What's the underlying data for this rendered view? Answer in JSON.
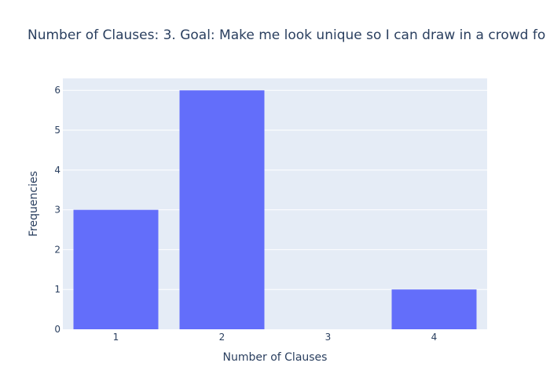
{
  "chart_data": {
    "type": "bar",
    "title": "Number of Clauses: 3. Goal: Make me look unique so I can draw in a crowd fo",
    "xlabel": "Number of Clauses",
    "ylabel": "Frequencies",
    "categories": [
      "1",
      "2",
      "3",
      "4"
    ],
    "values": [
      3,
      6,
      0,
      1
    ],
    "ylim": [
      0,
      6.3
    ],
    "yticks": [
      0,
      1,
      2,
      3,
      4,
      5,
      6
    ],
    "grid": true,
    "bar_color": "#636efa",
    "plot_background": "#e5ecf6",
    "grid_color": "#ffffff",
    "text_color": "#2a3f5f"
  }
}
